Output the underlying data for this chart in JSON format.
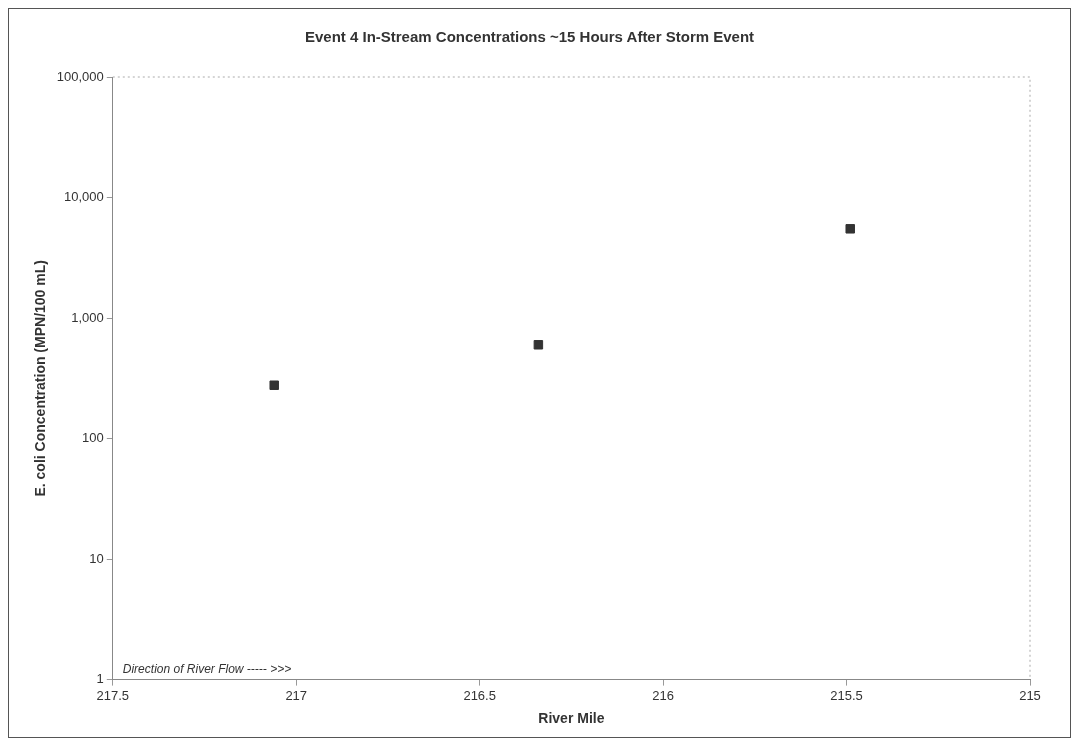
{
  "chart_data": {
    "type": "scatter",
    "title": "Event 4 In-Stream Concentrations ~15 Hours After Storm Event",
    "xlabel": "River Mile",
    "ylabel": "E. coli Concentration (MPN/100 mL)",
    "x": [
      217.06,
      216.34,
      215.49
    ],
    "series": [
      {
        "color": "#333333",
        "values": [
          277,
          600,
          5500
        ]
      }
    ],
    "marker": "square",
    "log": "y",
    "xlim": [
      217.5,
      215
    ],
    "xticks": [
      217.5,
      217,
      216.5,
      216,
      215.5,
      215
    ],
    "ylim": [
      1,
      100000
    ],
    "yticks": [
      1,
      10,
      100,
      {
        "value": 1000,
        "label": "1,000"
      },
      {
        "value": 10000,
        "label": "10,000"
      },
      {
        "value": 100000,
        "label": "100,000"
      }
    ],
    "grid": false,
    "legend": false,
    "annotations": [
      "Direction of River Flow ----- >>>"
    ]
  }
}
